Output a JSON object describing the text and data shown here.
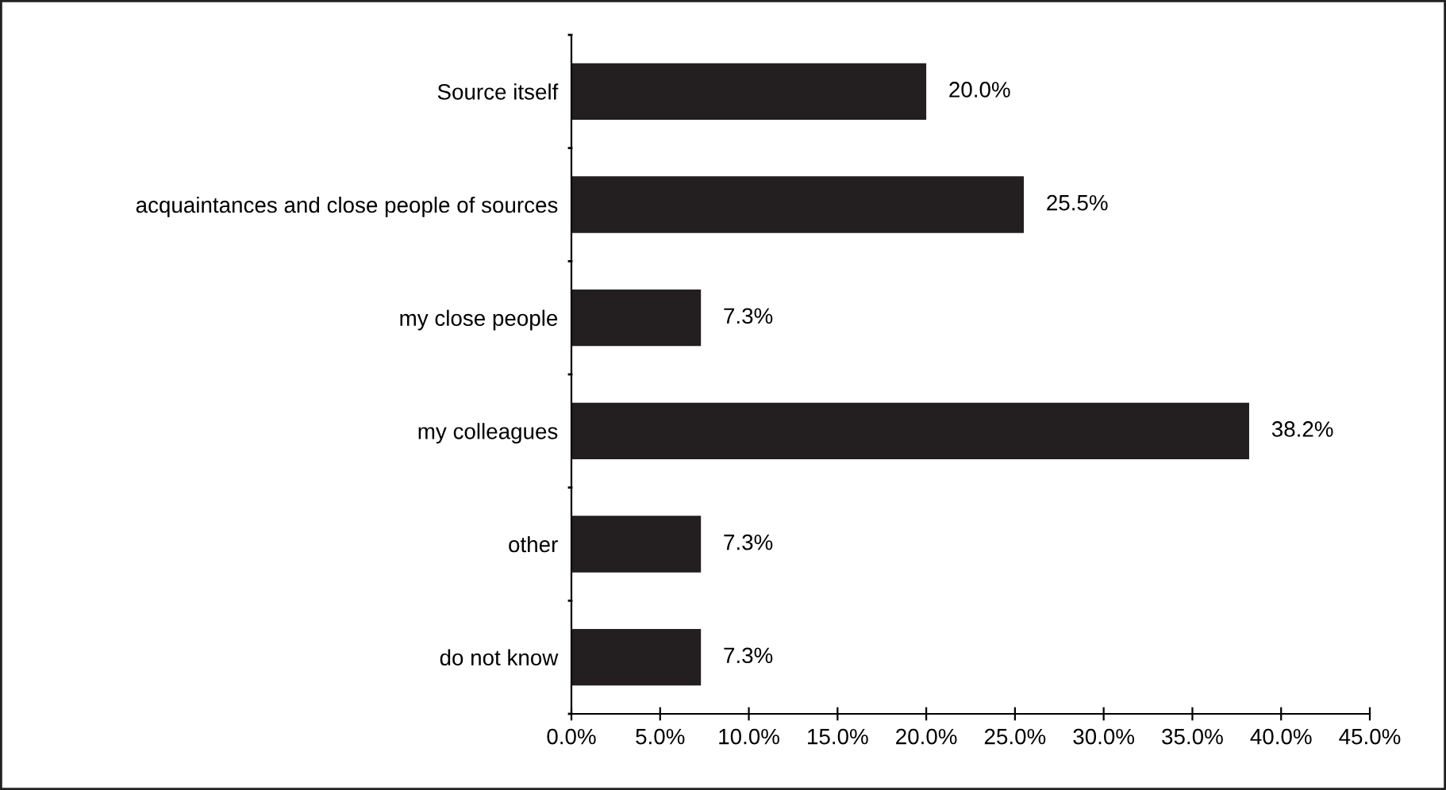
{
  "chart_data": {
    "type": "bar",
    "orientation": "horizontal",
    "categories": [
      "Source itself",
      "acquaintances and close people of sources",
      "my close people",
      "my colleagues",
      "other",
      "do not know"
    ],
    "values": [
      20.0,
      25.5,
      7.3,
      38.2,
      7.3,
      7.3
    ],
    "value_labels": [
      "20.0%",
      "25.5%",
      "7.3%",
      "38.2%",
      "7.3%",
      "7.3%"
    ],
    "color": "#231f20",
    "xlim": [
      0,
      45
    ],
    "xticks": [
      {
        "value": 0,
        "label": "0.0%"
      },
      {
        "value": 5,
        "label": "5.0%"
      },
      {
        "value": 10,
        "label": "10.0%"
      },
      {
        "value": 15,
        "label": "15.0%"
      },
      {
        "value": 20,
        "label": "20.0%"
      },
      {
        "value": 25,
        "label": "25.0%"
      },
      {
        "value": 30,
        "label": "30.0%"
      },
      {
        "value": 35,
        "label": "35.0%"
      },
      {
        "value": 40,
        "label": "40.0%"
      },
      {
        "value": 45,
        "label": "45.0%"
      }
    ],
    "grid": false,
    "legend": false
  }
}
